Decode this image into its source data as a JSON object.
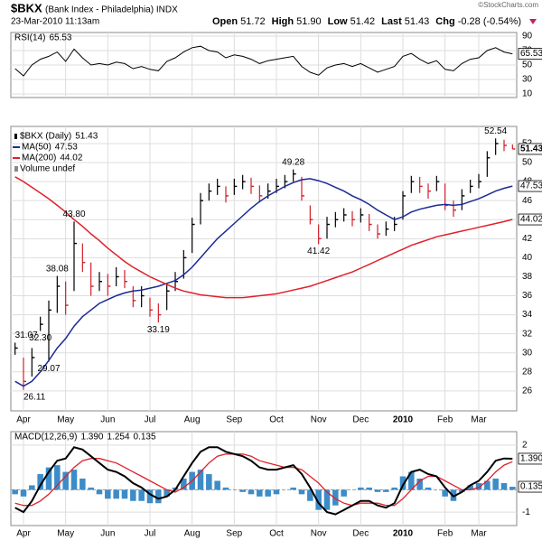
{
  "header": {
    "symbol": "$BKX",
    "description": "(Bank Index - Philadelphia) INDX",
    "datetime": "23-Mar-2010 11:13am",
    "copyright": "©StockCharts.com",
    "quote": [
      {
        "label": "Open",
        "value": 51.72
      },
      {
        "label": "High",
        "value": 51.9,
        "text": "51.90"
      },
      {
        "label": "Low",
        "value": 51.42
      },
      {
        "label": "Last",
        "value": 51.43
      }
    ],
    "change_label": "Chg",
    "change": "-0.28 (-0.54%)"
  },
  "chart_data": [
    {
      "type": "rsi",
      "label": "RSI(14)",
      "color": "#000000",
      "ylim": [
        5,
        95
      ],
      "yticks": [
        90,
        70,
        50,
        30,
        10
      ],
      "values": [
        45,
        35,
        50,
        58,
        62,
        68,
        55,
        72,
        60,
        50,
        52,
        50,
        54,
        52,
        45,
        48,
        44,
        42,
        55,
        60,
        68,
        74,
        76,
        70,
        68,
        60,
        64,
        62,
        58,
        52,
        56,
        58,
        60,
        62,
        48,
        40,
        36,
        46,
        50,
        52,
        48,
        52,
        46,
        40,
        44,
        48,
        62,
        66,
        58,
        52,
        56,
        44,
        42,
        52,
        58,
        60,
        70,
        74,
        68,
        65.53
      ]
    },
    {
      "type": "candlestick",
      "ylim": [
        23.9,
        53.8
      ],
      "yticks": [
        52,
        50,
        48,
        46,
        44,
        42,
        40,
        38,
        36,
        34,
        32,
        30,
        28,
        26
      ],
      "categories": [
        null,
        "Apr",
        null,
        null,
        null,
        null,
        "May",
        null,
        null,
        null,
        null,
        "Jun",
        null,
        null,
        null,
        null,
        "Jul",
        null,
        null,
        null,
        null,
        "Aug",
        null,
        null,
        null,
        null,
        "Sep",
        null,
        null,
        null,
        null,
        "Oct",
        null,
        null,
        null,
        null,
        "Nov",
        null,
        null,
        null,
        null,
        "Dec",
        null,
        null,
        null,
        null,
        "2010",
        null,
        null,
        null,
        null,
        "Feb",
        null,
        null,
        null,
        "Mar",
        null,
        null,
        null,
        null
      ],
      "series": [
        {
          "name": "$BKX (Daily)",
          "up_color": "#000000",
          "down_color": "#d0202a",
          "close": [
            30.5,
            27.0,
            29.5,
            33.0,
            34.5,
            37.0,
            35.0,
            41.5,
            39.5,
            37.0,
            37.5,
            37.0,
            38.0,
            37.5,
            35.5,
            36.0,
            34.5,
            34.0,
            36.5,
            37.5,
            40.0,
            43.5,
            46.0,
            47.0,
            47.5,
            46.5,
            47.5,
            48.0,
            47.5,
            46.5,
            47.0,
            47.5,
            48.0,
            48.8,
            46.5,
            44.0,
            42.0,
            43.5,
            44.0,
            44.5,
            44.0,
            44.5,
            43.5,
            42.5,
            43.0,
            43.5,
            46.5,
            48.0,
            47.5,
            47.0,
            48.0,
            45.5,
            45.0,
            46.5,
            47.5,
            48.0,
            50.5,
            52.0,
            51.8,
            51.43
          ],
          "high": [
            31.07,
            29.5,
            30.5,
            33.8,
            35.5,
            38.08,
            37.5,
            43.8,
            41.5,
            39.5,
            38.5,
            38.3,
            39.0,
            38.7,
            37.0,
            37.0,
            35.8,
            35.2,
            37.2,
            38.5,
            40.8,
            44.2,
            46.8,
            47.8,
            48.3,
            47.5,
            48.3,
            48.7,
            48.4,
            47.6,
            47.8,
            48.3,
            48.7,
            49.28,
            48.5,
            45.5,
            43.5,
            44.3,
            44.8,
            45.2,
            44.9,
            45.2,
            44.6,
            43.5,
            43.8,
            44.3,
            47.0,
            48.6,
            48.5,
            47.8,
            48.6,
            47.8,
            46.0,
            47.2,
            48.2,
            48.8,
            51.2,
            52.54,
            52.4,
            51.9
          ],
          "low": [
            29.8,
            26.11,
            27.5,
            32.3,
            29.07,
            34.2,
            34.0,
            36.5,
            38.5,
            36.0,
            36.5,
            36.0,
            37.0,
            36.8,
            34.8,
            34.8,
            33.8,
            33.19,
            34.5,
            36.5,
            37.8,
            40.5,
            43.5,
            46.0,
            46.6,
            45.8,
            46.6,
            47.2,
            46.7,
            45.8,
            46.2,
            46.8,
            47.3,
            48.0,
            46.0,
            43.5,
            41.42,
            42.0,
            43.2,
            43.8,
            43.3,
            43.7,
            42.8,
            42.0,
            42.3,
            42.8,
            44.0,
            46.8,
            46.8,
            46.2,
            47.0,
            45.0,
            44.3,
            45.0,
            46.8,
            47.3,
            48.5,
            50.8,
            51.2,
            51.42
          ]
        },
        {
          "name": "MA(50)",
          "color": "#1c2a96",
          "values": [
            27.0,
            26.5,
            27.0,
            28.0,
            29.2,
            30.5,
            31.5,
            32.8,
            33.8,
            34.5,
            35.2,
            35.6,
            36.0,
            36.3,
            36.5,
            36.6,
            36.8,
            37.0,
            37.3,
            37.6,
            38.2,
            39.0,
            40.0,
            41.0,
            42.0,
            42.8,
            43.6,
            44.4,
            45.2,
            45.9,
            46.5,
            47.0,
            47.5,
            47.9,
            48.2,
            48.3,
            48.1,
            47.8,
            47.4,
            47.0,
            46.5,
            46.1,
            45.6,
            45.0,
            44.5,
            44.0,
            44.3,
            44.8,
            45.1,
            45.3,
            45.5,
            45.6,
            45.5,
            45.6,
            45.9,
            46.2,
            46.6,
            47.0,
            47.3,
            47.53
          ]
        },
        {
          "name": "MA(200)",
          "color": "#e0202a",
          "values": [
            48.5,
            48.0,
            47.4,
            46.8,
            46.2,
            45.5,
            44.8,
            44.0,
            43.3,
            42.5,
            41.8,
            41.0,
            40.3,
            39.6,
            39.0,
            38.5,
            38.0,
            37.6,
            37.2,
            36.8,
            36.5,
            36.3,
            36.1,
            36.0,
            35.9,
            35.8,
            35.8,
            35.8,
            35.9,
            36.0,
            36.1,
            36.2,
            36.4,
            36.6,
            36.8,
            37.0,
            37.3,
            37.6,
            37.9,
            38.2,
            38.5,
            38.9,
            39.3,
            39.7,
            40.1,
            40.5,
            40.9,
            41.3,
            41.6,
            41.9,
            42.2,
            42.4,
            42.6,
            42.8,
            43.0,
            43.2,
            43.4,
            43.6,
            43.8,
            44.02
          ]
        }
      ],
      "volume_label": "Volume undef",
      "annotations": [
        {
          "value": 31.07,
          "index": 0
        },
        {
          "value": 26.11,
          "index": 1
        },
        {
          "value": 32.3,
          "text": "32.30",
          "index": 3
        },
        {
          "value": 29.07,
          "index": 4
        },
        {
          "value": 38.08,
          "index": 5
        },
        {
          "value": 43.8,
          "text": "43.80",
          "index": 7
        },
        {
          "value": 33.19,
          "index": 17
        },
        {
          "value": 49.28,
          "index": 33
        },
        {
          "value": 41.42,
          "index": 36
        },
        {
          "value": 52.54,
          "index": 57
        }
      ]
    },
    {
      "type": "macd",
      "label": "MACD(12,26,9)",
      "ylim": [
        -1.6,
        2.6
      ],
      "yticks": [
        2,
        -1
      ],
      "categories": [
        null,
        "Apr",
        null,
        null,
        null,
        null,
        "May",
        null,
        null,
        null,
        null,
        "Jun",
        null,
        null,
        null,
        null,
        "Jul",
        null,
        null,
        null,
        null,
        "Aug",
        null,
        null,
        null,
        null,
        "Sep",
        null,
        null,
        null,
        null,
        "Oct",
        null,
        null,
        null,
        null,
        "Nov",
        null,
        null,
        null,
        null,
        "Dec",
        null,
        null,
        null,
        null,
        "2010",
        null,
        null,
        null,
        null,
        "Feb",
        null,
        null,
        null,
        "Mar",
        null,
        null,
        null,
        null
      ],
      "series": [
        {
          "name": "MACD",
          "color": "#000000",
          "last_label": "1.390",
          "values": [
            -0.8,
            -1.0,
            -0.5,
            0.2,
            0.8,
            1.3,
            1.4,
            1.9,
            1.8,
            1.5,
            1.2,
            0.9,
            0.8,
            0.6,
            0.3,
            0.1,
            -0.2,
            -0.4,
            -0.3,
            0.0,
            0.6,
            1.2,
            1.7,
            1.9,
            1.9,
            1.7,
            1.6,
            1.5,
            1.3,
            1.0,
            0.9,
            0.9,
            1.0,
            1.1,
            0.7,
            0.1,
            -0.6,
            -1.0,
            -1.1,
            -0.9,
            -0.7,
            -0.5,
            -0.5,
            -0.7,
            -0.8,
            -0.6,
            0.2,
            0.8,
            0.9,
            0.7,
            0.6,
            0.1,
            -0.3,
            -0.1,
            0.2,
            0.4,
            0.8,
            1.3,
            1.4,
            1.39
          ]
        },
        {
          "name": "Signal",
          "color": "#e0202a",
          "last_label": "1.254",
          "values": [
            -0.6,
            -0.7,
            -0.7,
            -0.5,
            -0.2,
            0.2,
            0.6,
            1.0,
            1.3,
            1.4,
            1.4,
            1.3,
            1.2,
            1.0,
            0.8,
            0.6,
            0.4,
            0.2,
            0.0,
            -0.1,
            0.1,
            0.4,
            0.8,
            1.2,
            1.5,
            1.6,
            1.6,
            1.6,
            1.5,
            1.3,
            1.2,
            1.1,
            1.0,
            1.0,
            0.9,
            0.6,
            0.3,
            -0.1,
            -0.4,
            -0.6,
            -0.7,
            -0.6,
            -0.6,
            -0.6,
            -0.7,
            -0.7,
            -0.4,
            0.0,
            0.4,
            0.6,
            0.6,
            0.4,
            0.2,
            0.0,
            0.0,
            0.1,
            0.4,
            0.8,
            1.1,
            1.254
          ]
        },
        {
          "name": "Histogram",
          "color": "#3d8cc8",
          "last_label": "0.135",
          "values": [
            -0.2,
            -0.3,
            0.2,
            0.7,
            1.0,
            1.1,
            0.8,
            0.9,
            0.5,
            0.1,
            -0.2,
            -0.4,
            -0.4,
            -0.4,
            -0.5,
            -0.5,
            -0.6,
            -0.6,
            -0.3,
            0.1,
            0.5,
            0.8,
            0.9,
            0.7,
            0.4,
            0.1,
            0.0,
            -0.1,
            -0.2,
            -0.3,
            -0.3,
            -0.2,
            0.0,
            0.1,
            -0.2,
            -0.5,
            -0.9,
            -0.9,
            -0.7,
            -0.3,
            0.0,
            0.1,
            0.1,
            -0.1,
            -0.1,
            0.1,
            0.6,
            0.8,
            0.5,
            0.1,
            0.0,
            -0.3,
            -0.5,
            -0.1,
            0.2,
            0.3,
            0.4,
            0.5,
            0.3,
            0.135
          ]
        }
      ]
    }
  ]
}
